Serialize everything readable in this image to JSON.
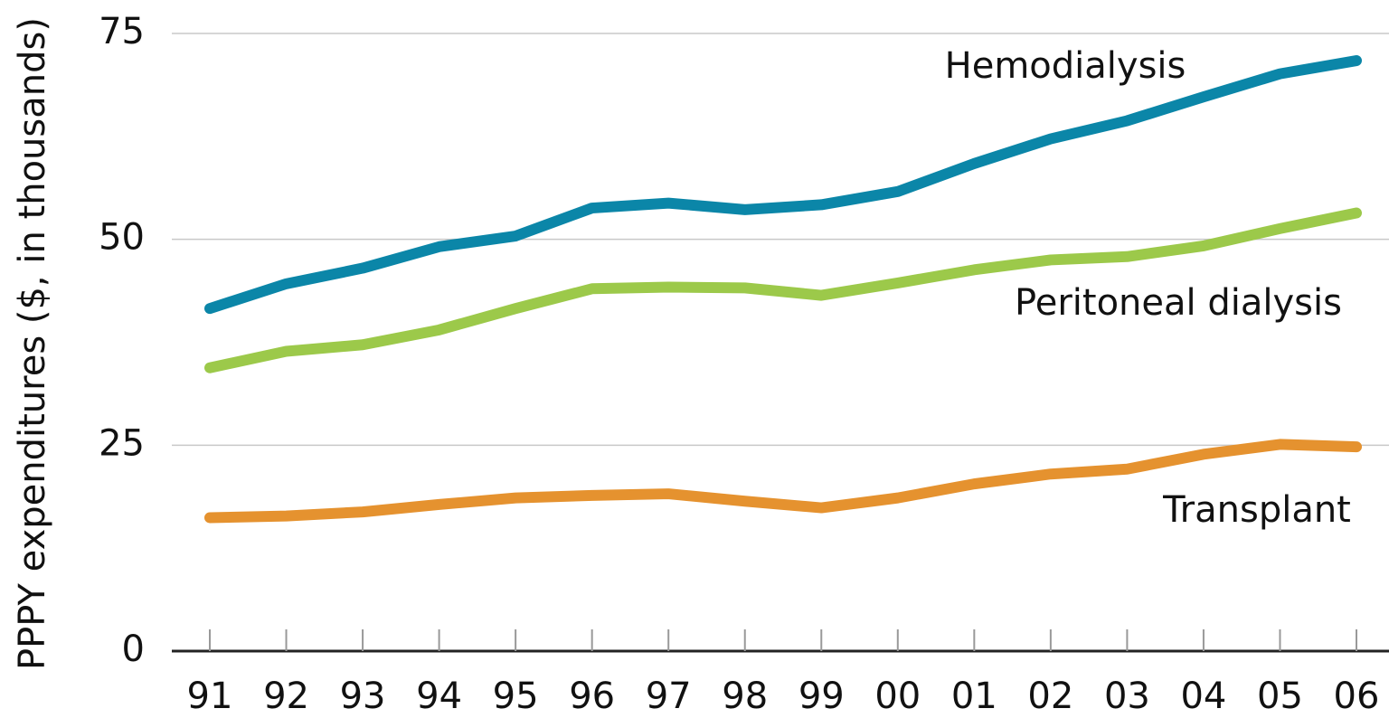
{
  "chart_data": {
    "type": "line",
    "y_label": "PPPY expenditures ($, in thousands)",
    "categories": [
      "91",
      "92",
      "93",
      "94",
      "95",
      "96",
      "97",
      "98",
      "99",
      "00",
      "01",
      "02",
      "03",
      "04",
      "05",
      "06"
    ],
    "series": [
      {
        "name": "Hemodialysis",
        "color": "#0b86a8",
        "values": [
          41.6,
          44.6,
          46.5,
          49.1,
          50.4,
          53.8,
          54.4,
          53.6,
          54.2,
          55.8,
          59.2,
          62.2,
          64.4,
          67.3,
          70.1,
          71.7
        ]
      },
      {
        "name": "Peritoneal dialysis",
        "color": "#9cc94a",
        "values": [
          34.4,
          36.4,
          37.2,
          39.0,
          41.6,
          44.0,
          44.2,
          44.1,
          43.2,
          44.7,
          46.3,
          47.5,
          47.9,
          49.2,
          51.3,
          53.2
        ]
      },
      {
        "name": "Transplant",
        "color": "#e5922f",
        "values": [
          16.2,
          16.4,
          16.9,
          17.8,
          18.6,
          18.9,
          19.1,
          18.2,
          17.4,
          18.6,
          20.3,
          21.5,
          22.1,
          23.9,
          25.1,
          24.8
        ]
      }
    ],
    "ylim": [
      0,
      75
    ],
    "yticks": [
      0,
      25,
      50,
      75
    ],
    "grid": true
  }
}
